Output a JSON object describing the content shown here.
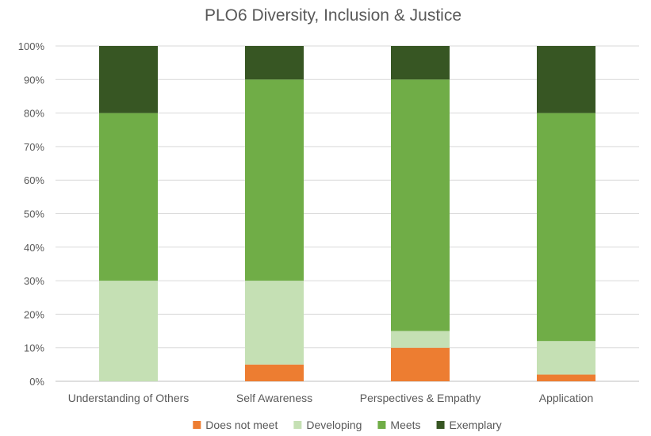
{
  "chart_data": {
    "type": "bar",
    "stacked": true,
    "title": "PLO6 Diversity, Inclusion & Justice",
    "xlabel": "",
    "ylabel": "",
    "ylim": [
      0,
      100
    ],
    "y_ticks": [
      "0%",
      "10%",
      "20%",
      "30%",
      "40%",
      "50%",
      "60%",
      "70%",
      "80%",
      "90%",
      "100%"
    ],
    "y_tick_values": [
      0,
      10,
      20,
      30,
      40,
      50,
      60,
      70,
      80,
      90,
      100
    ],
    "grid": "horizontal",
    "legend_position": "bottom",
    "categories": [
      "Understanding of Others",
      "Self Awareness",
      "Perspectives & Empathy",
      "Application"
    ],
    "series": [
      {
        "name": "Does not meet",
        "color": "#ED7D31",
        "values": [
          0,
          5,
          10,
          2
        ]
      },
      {
        "name": "Developing",
        "color": "#C5E0B4",
        "values": [
          30,
          25,
          5,
          10
        ]
      },
      {
        "name": "Meets",
        "color": "#70AD47",
        "values": [
          50,
          60,
          75,
          68
        ]
      },
      {
        "name": "Exemplary",
        "color": "#375623",
        "values": [
          20,
          10,
          10,
          20
        ]
      }
    ]
  }
}
